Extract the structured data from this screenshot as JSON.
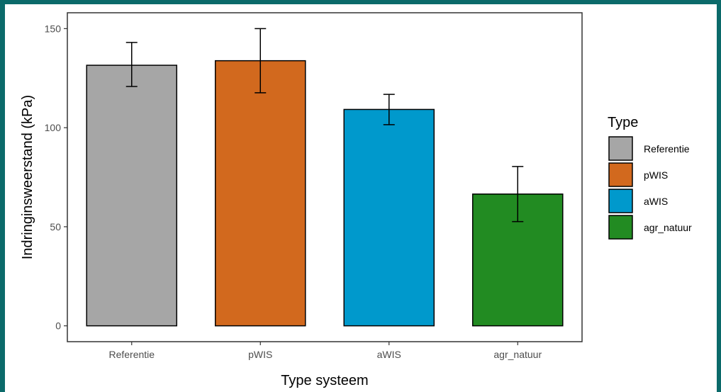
{
  "chart_data": {
    "type": "bar",
    "categories": [
      "Referentie",
      "pWIS",
      "aWIS",
      "agr_natuur"
    ],
    "values": [
      131.5,
      133.8,
      109.2,
      66.5
    ],
    "error_low": [
      120.8,
      117.6,
      101.5,
      52.6
    ],
    "error_high": [
      143.0,
      150.0,
      116.8,
      80.4
    ],
    "colors": [
      "#a6a6a6",
      "#d2691e",
      "#0099cc",
      "#228b22"
    ],
    "xlabel": "Type systeem",
    "ylabel": "Indringinsweerstand (kPa)",
    "yticks": [
      0,
      50,
      100,
      150
    ],
    "ylim": [
      -8,
      158
    ],
    "grid": false,
    "legend": {
      "title": "Type",
      "placement": "right",
      "entries": [
        "Referentie",
        "pWIS",
        "aWIS",
        "agr_natuur"
      ]
    }
  }
}
